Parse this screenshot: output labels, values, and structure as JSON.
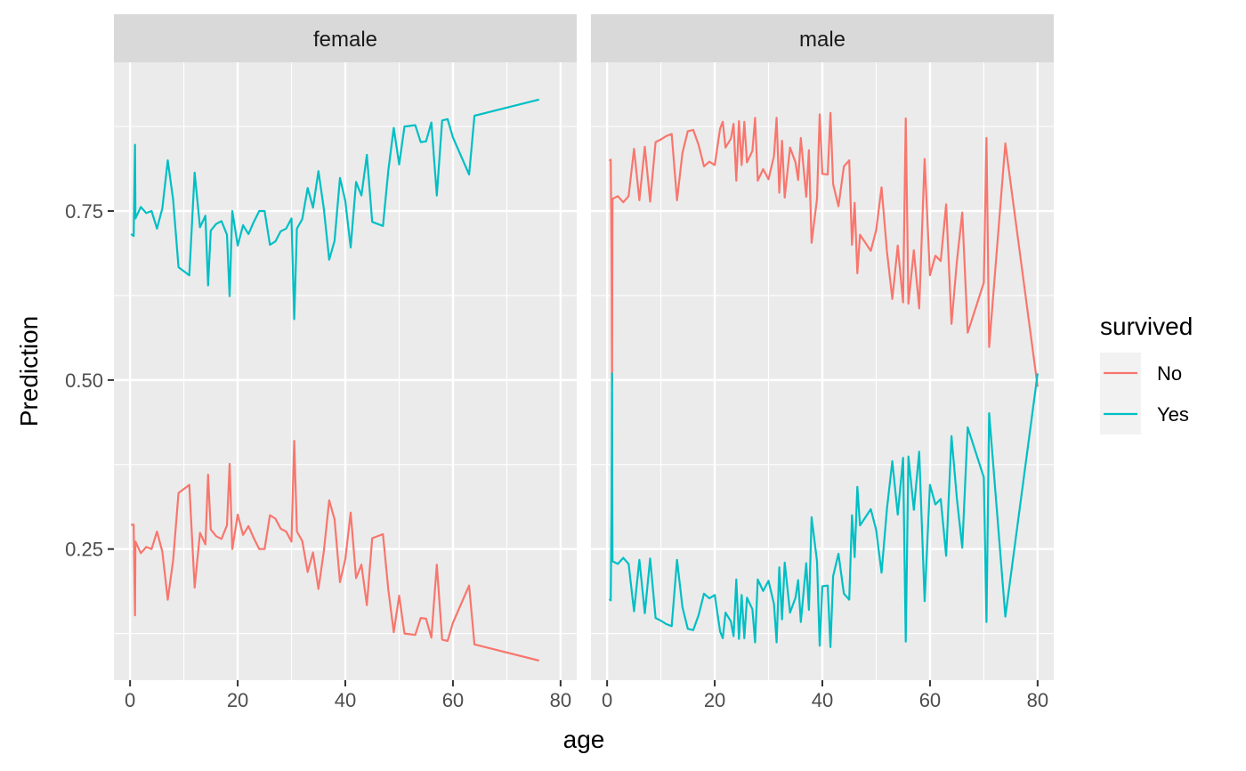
{
  "chart_data": {
    "type": "line",
    "facet_by": "sex",
    "panels": [
      "female",
      "male"
    ],
    "xlabel": "age",
    "ylabel": "Prediction",
    "xlim": [
      -3,
      83
    ],
    "ylim": [
      0.056,
      0.97
    ],
    "x_ticks": [
      0,
      20,
      40,
      60,
      80
    ],
    "y_ticks": [
      0.25,
      0.5,
      0.75
    ],
    "y_tick_labels": [
      "0.25",
      "0.50",
      "0.75"
    ],
    "grid": true,
    "legend": {
      "title": "survived",
      "position": "right",
      "entries": [
        {
          "key": "No",
          "label": "No"
        },
        {
          "key": "Yes",
          "label": "Yes"
        }
      ]
    },
    "series_colors": {
      "No": "#F8766D",
      "Yes": "#00BFC4"
    },
    "series": {
      "female": {
        "No": [
          [
            0.17,
            0.286
          ],
          [
            0.67,
            0.286
          ],
          [
            0.92,
            0.152
          ],
          [
            1,
            0.261
          ],
          [
            2,
            0.244
          ],
          [
            3,
            0.253
          ],
          [
            4,
            0.25
          ],
          [
            5,
            0.276
          ],
          [
            6,
            0.246
          ],
          [
            7,
            0.175
          ],
          [
            8,
            0.233
          ],
          [
            9,
            0.333
          ],
          [
            11,
            0.345
          ],
          [
            12,
            0.193
          ],
          [
            13,
            0.274
          ],
          [
            14,
            0.257
          ],
          [
            14.5,
            0.36
          ],
          [
            15,
            0.279
          ],
          [
            16,
            0.269
          ],
          [
            17,
            0.265
          ],
          [
            18,
            0.285
          ],
          [
            18.5,
            0.376
          ],
          [
            19,
            0.25
          ],
          [
            20,
            0.301
          ],
          [
            21,
            0.271
          ],
          [
            22,
            0.284
          ],
          [
            23,
            0.266
          ],
          [
            24,
            0.25
          ],
          [
            25,
            0.25
          ],
          [
            26,
            0.3
          ],
          [
            27,
            0.295
          ],
          [
            28,
            0.28
          ],
          [
            29,
            0.276
          ],
          [
            30,
            0.261
          ],
          [
            30.5,
            0.41
          ],
          [
            31,
            0.276
          ],
          [
            32,
            0.262
          ],
          [
            33,
            0.216
          ],
          [
            34,
            0.245
          ],
          [
            35,
            0.191
          ],
          [
            36,
            0.246
          ],
          [
            37,
            0.322
          ],
          [
            38,
            0.294
          ],
          [
            39,
            0.201
          ],
          [
            40,
            0.235
          ],
          [
            41,
            0.304
          ],
          [
            42,
            0.207
          ],
          [
            43,
            0.227
          ],
          [
            44,
            0.167
          ],
          [
            45,
            0.266
          ],
          [
            47,
            0.272
          ],
          [
            48,
            0.189
          ],
          [
            49,
            0.127
          ],
          [
            50,
            0.181
          ],
          [
            51,
            0.125
          ],
          [
            53,
            0.123
          ],
          [
            54,
            0.148
          ],
          [
            55,
            0.147
          ],
          [
            56,
            0.119
          ],
          [
            57,
            0.227
          ],
          [
            58,
            0.116
          ],
          [
            59,
            0.114
          ],
          [
            60,
            0.141
          ],
          [
            63,
            0.196
          ],
          [
            64,
            0.109
          ],
          [
            76,
            0.085
          ]
        ],
        "Yes": [
          [
            0.17,
            0.716
          ],
          [
            0.67,
            0.713
          ],
          [
            0.92,
            0.848
          ],
          [
            1,
            0.739
          ],
          [
            2,
            0.756
          ],
          [
            3,
            0.747
          ],
          [
            4,
            0.75
          ],
          [
            5,
            0.724
          ],
          [
            6,
            0.754
          ],
          [
            7,
            0.825
          ],
          [
            8,
            0.767
          ],
          [
            9,
            0.667
          ],
          [
            11,
            0.655
          ],
          [
            12,
            0.807
          ],
          [
            13,
            0.726
          ],
          [
            14,
            0.743
          ],
          [
            14.5,
            0.64
          ],
          [
            15,
            0.721
          ],
          [
            16,
            0.731
          ],
          [
            17,
            0.735
          ],
          [
            18,
            0.715
          ],
          [
            18.5,
            0.624
          ],
          [
            19,
            0.75
          ],
          [
            20,
            0.699
          ],
          [
            21,
            0.729
          ],
          [
            22,
            0.716
          ],
          [
            23,
            0.734
          ],
          [
            24,
            0.75
          ],
          [
            25,
            0.75
          ],
          [
            26,
            0.7
          ],
          [
            27,
            0.705
          ],
          [
            28,
            0.72
          ],
          [
            29,
            0.724
          ],
          [
            30,
            0.739
          ],
          [
            30.5,
            0.59
          ],
          [
            31,
            0.724
          ],
          [
            32,
            0.738
          ],
          [
            33,
            0.784
          ],
          [
            34,
            0.755
          ],
          [
            35,
            0.809
          ],
          [
            36,
            0.754
          ],
          [
            37,
            0.678
          ],
          [
            38,
            0.706
          ],
          [
            39,
            0.799
          ],
          [
            40,
            0.765
          ],
          [
            41,
            0.696
          ],
          [
            42,
            0.793
          ],
          [
            43,
            0.773
          ],
          [
            44,
            0.833
          ],
          [
            45,
            0.734
          ],
          [
            47,
            0.728
          ],
          [
            48,
            0.811
          ],
          [
            49,
            0.873
          ],
          [
            50,
            0.819
          ],
          [
            51,
            0.875
          ],
          [
            53,
            0.877
          ],
          [
            54,
            0.852
          ],
          [
            55,
            0.853
          ],
          [
            56,
            0.881
          ],
          [
            57,
            0.773
          ],
          [
            58,
            0.884
          ],
          [
            59,
            0.886
          ],
          [
            60,
            0.859
          ],
          [
            63,
            0.804
          ],
          [
            64,
            0.891
          ],
          [
            76,
            0.915
          ]
        ]
      },
      "male": {
        "No": [
          [
            0.42,
            0.824
          ],
          [
            0.67,
            0.826
          ],
          [
            0.83,
            0.678
          ],
          [
            0.92,
            0.49
          ],
          [
            1,
            0.768
          ],
          [
            2,
            0.772
          ],
          [
            3,
            0.763
          ],
          [
            4,
            0.772
          ],
          [
            5,
            0.842
          ],
          [
            6,
            0.766
          ],
          [
            7,
            0.845
          ],
          [
            8,
            0.764
          ],
          [
            9,
            0.852
          ],
          [
            10,
            0.856
          ],
          [
            11,
            0.861
          ],
          [
            12,
            0.864
          ],
          [
            13,
            0.766
          ],
          [
            14,
            0.836
          ],
          [
            15,
            0.868
          ],
          [
            16,
            0.87
          ],
          [
            17,
            0.848
          ],
          [
            18,
            0.816
          ],
          [
            19,
            0.823
          ],
          [
            20,
            0.818
          ],
          [
            21,
            0.872
          ],
          [
            21.5,
            0.882
          ],
          [
            22,
            0.844
          ],
          [
            23,
            0.857
          ],
          [
            23.5,
            0.879
          ],
          [
            24,
            0.795
          ],
          [
            24.5,
            0.883
          ],
          [
            25,
            0.818
          ],
          [
            25.5,
            0.882
          ],
          [
            26,
            0.822
          ],
          [
            27,
            0.839
          ],
          [
            27.5,
            0.888
          ],
          [
            28,
            0.795
          ],
          [
            29,
            0.812
          ],
          [
            30,
            0.797
          ],
          [
            31,
            0.831
          ],
          [
            31.5,
            0.888
          ],
          [
            32,
            0.777
          ],
          [
            32.5,
            0.854
          ],
          [
            33,
            0.77
          ],
          [
            34,
            0.844
          ],
          [
            35,
            0.822
          ],
          [
            35.5,
            0.796
          ],
          [
            36,
            0.858
          ],
          [
            37,
            0.771
          ],
          [
            37.5,
            0.84
          ],
          [
            38,
            0.703
          ],
          [
            39,
            0.768
          ],
          [
            39.5,
            0.893
          ],
          [
            40,
            0.805
          ],
          [
            41,
            0.804
          ],
          [
            41.5,
            0.895
          ],
          [
            42,
            0.79
          ],
          [
            43,
            0.757
          ],
          [
            44,
            0.816
          ],
          [
            45,
            0.825
          ],
          [
            45.5,
            0.7
          ],
          [
            46,
            0.762
          ],
          [
            46.5,
            0.658
          ],
          [
            47,
            0.715
          ],
          [
            48,
            0.703
          ],
          [
            49,
            0.691
          ],
          [
            50,
            0.722
          ],
          [
            51,
            0.785
          ],
          [
            52,
            0.69
          ],
          [
            53,
            0.62
          ],
          [
            54,
            0.699
          ],
          [
            55,
            0.615
          ],
          [
            55.5,
            0.887
          ],
          [
            56,
            0.613
          ],
          [
            57,
            0.692
          ],
          [
            58,
            0.606
          ],
          [
            59,
            0.827
          ],
          [
            60,
            0.655
          ],
          [
            61,
            0.684
          ],
          [
            62,
            0.676
          ],
          [
            63,
            0.76
          ],
          [
            64,
            0.583
          ],
          [
            65,
            0.676
          ],
          [
            66,
            0.748
          ],
          [
            67,
            0.57
          ],
          [
            70,
            0.644
          ],
          [
            70.5,
            0.858
          ],
          [
            71,
            0.549
          ],
          [
            74,
            0.85
          ],
          [
            80,
            0.49
          ]
        ],
        "Yes": [
          [
            0.42,
            0.176
          ],
          [
            0.67,
            0.174
          ],
          [
            0.83,
            0.322
          ],
          [
            0.92,
            0.51
          ],
          [
            1,
            0.232
          ],
          [
            2,
            0.228
          ],
          [
            3,
            0.237
          ],
          [
            4,
            0.228
          ],
          [
            5,
            0.158
          ],
          [
            6,
            0.234
          ],
          [
            7,
            0.155
          ],
          [
            8,
            0.236
          ],
          [
            9,
            0.148
          ],
          [
            10,
            0.144
          ],
          [
            11,
            0.139
          ],
          [
            12,
            0.136
          ],
          [
            13,
            0.234
          ],
          [
            14,
            0.164
          ],
          [
            15,
            0.132
          ],
          [
            16,
            0.13
          ],
          [
            17,
            0.152
          ],
          [
            18,
            0.184
          ],
          [
            19,
            0.177
          ],
          [
            20,
            0.182
          ],
          [
            21,
            0.128
          ],
          [
            21.5,
            0.118
          ],
          [
            22,
            0.156
          ],
          [
            23,
            0.143
          ],
          [
            23.5,
            0.121
          ],
          [
            24,
            0.205
          ],
          [
            24.5,
            0.117
          ],
          [
            25,
            0.182
          ],
          [
            25.5,
            0.118
          ],
          [
            26,
            0.178
          ],
          [
            27,
            0.161
          ],
          [
            27.5,
            0.112
          ],
          [
            28,
            0.205
          ],
          [
            29,
            0.188
          ],
          [
            30,
            0.203
          ],
          [
            31,
            0.169
          ],
          [
            31.5,
            0.112
          ],
          [
            32,
            0.223
          ],
          [
            32.5,
            0.146
          ],
          [
            33,
            0.23
          ],
          [
            34,
            0.156
          ],
          [
            35,
            0.178
          ],
          [
            35.5,
            0.204
          ],
          [
            36,
            0.142
          ],
          [
            37,
            0.229
          ],
          [
            37.5,
            0.16
          ],
          [
            38,
            0.297
          ],
          [
            39,
            0.232
          ],
          [
            39.5,
            0.107
          ],
          [
            40,
            0.195
          ],
          [
            41,
            0.196
          ],
          [
            41.5,
            0.105
          ],
          [
            42,
            0.21
          ],
          [
            43,
            0.243
          ],
          [
            44,
            0.184
          ],
          [
            45,
            0.175
          ],
          [
            45.5,
            0.3
          ],
          [
            46,
            0.238
          ],
          [
            46.5,
            0.342
          ],
          [
            47,
            0.285
          ],
          [
            48,
            0.297
          ],
          [
            49,
            0.309
          ],
          [
            50,
            0.278
          ],
          [
            51,
            0.215
          ],
          [
            52,
            0.31
          ],
          [
            53,
            0.38
          ],
          [
            54,
            0.301
          ],
          [
            55,
            0.385
          ],
          [
            55.5,
            0.113
          ],
          [
            56,
            0.387
          ],
          [
            57,
            0.308
          ],
          [
            58,
            0.394
          ],
          [
            59,
            0.173
          ],
          [
            60,
            0.345
          ],
          [
            61,
            0.316
          ],
          [
            62,
            0.324
          ],
          [
            63,
            0.24
          ],
          [
            64,
            0.417
          ],
          [
            65,
            0.324
          ],
          [
            66,
            0.252
          ],
          [
            67,
            0.43
          ],
          [
            70,
            0.356
          ],
          [
            70.5,
            0.142
          ],
          [
            71,
            0.451
          ],
          [
            74,
            0.15
          ],
          [
            80,
            0.51
          ]
        ]
      }
    }
  }
}
